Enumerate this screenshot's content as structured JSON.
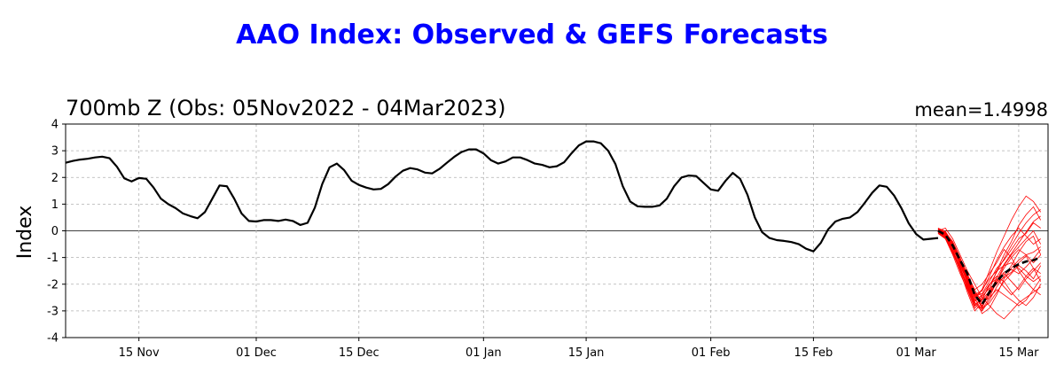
{
  "chart_data": {
    "type": "line",
    "title": "AAO Index: Observed & GEFS Forecasts",
    "subtitle_left": "700mb Z (Obs: 05Nov2022 - 04Mar2023)",
    "subtitle_right": "mean=1.4998",
    "ylabel": "Index",
    "xlabel": "",
    "xlim": [
      "2022-11-05",
      "2023-03-19"
    ],
    "ylim": [
      -4,
      4
    ],
    "yticks": [
      -4,
      -3,
      -2,
      -1,
      0,
      1,
      2,
      3,
      4
    ],
    "xticks": [
      {
        "date": "2022-11-15",
        "label": "15 Nov"
      },
      {
        "date": "2022-12-01",
        "label": "01 Dec"
      },
      {
        "date": "2022-12-15",
        "label": "15 Dec"
      },
      {
        "date": "2023-01-01",
        "label": "01 Jan"
      },
      {
        "date": "2023-01-15",
        "label": "15 Jan"
      },
      {
        "date": "2023-02-01",
        "label": "01 Feb"
      },
      {
        "date": "2023-02-15",
        "label": "15 Feb"
      },
      {
        "date": "2023-03-01",
        "label": "01 Mar"
      },
      {
        "date": "2023-03-15",
        "label": "15 Mar"
      }
    ],
    "grid": true,
    "colors": {
      "observed": "#000000",
      "members": "#ff0000",
      "ensemble_mean": "#000000",
      "title": "#0000ff"
    },
    "series": [
      {
        "style": "solid-black",
        "start": "2022-11-05",
        "values": [
          2.55,
          2.62,
          2.67,
          2.7,
          2.75,
          2.78,
          2.72,
          2.4,
          1.97,
          1.85,
          1.98,
          1.95,
          1.62,
          1.2,
          1.0,
          0.85,
          0.65,
          0.55,
          0.47,
          0.7,
          1.2,
          1.7,
          1.67,
          1.2,
          0.65,
          0.37,
          0.35,
          0.4,
          0.4,
          0.37,
          0.42,
          0.37,
          0.22,
          0.3,
          0.87,
          1.75,
          2.38,
          2.52,
          2.27,
          1.88,
          1.72,
          1.62,
          1.55,
          1.57,
          1.75,
          2.03,
          2.25,
          2.35,
          2.3,
          2.18,
          2.15,
          2.32,
          2.55,
          2.77,
          2.95,
          3.05,
          3.05,
          2.9,
          2.65,
          2.52,
          2.6,
          2.75,
          2.75,
          2.65,
          2.52,
          2.47,
          2.38,
          2.42,
          2.57,
          2.9,
          3.2,
          3.35,
          3.35,
          3.28,
          3.0,
          2.5,
          1.67,
          1.1,
          0.92,
          0.9,
          0.9,
          0.95,
          1.2,
          1.67,
          2.0,
          2.07,
          2.05,
          1.8,
          1.55,
          1.5,
          1.87,
          2.17,
          1.95,
          1.35,
          0.5,
          -0.05,
          -0.27,
          -0.35,
          -0.38,
          -0.42,
          -0.5,
          -0.67,
          -0.77,
          -0.45,
          0.05,
          0.35,
          0.45,
          0.5,
          0.7,
          1.05,
          1.42,
          1.7,
          1.65,
          1.32,
          0.85,
          0.28,
          -0.12,
          -0.33,
          -0.3,
          -0.27
        ]
      },
      {
        "style": "dashed-black",
        "start": "2023-03-04",
        "values": [
          0.0,
          -0.15,
          -0.55,
          -1.1,
          -1.6,
          -2.4,
          -2.75,
          -2.3,
          -1.9,
          -1.6,
          -1.4,
          -1.25,
          -1.15,
          -1.1,
          -1.0
        ]
      },
      {
        "style": "thin-red",
        "start": "2023-03-04",
        "members": [
          [
            0.1,
            -0.05,
            -0.4,
            -1.0,
            -1.8,
            -2.5,
            -3.1,
            -2.9,
            -2.4,
            -1.8,
            -1.4,
            -1.1,
            -0.9,
            -0.8,
            -0.6
          ],
          [
            0.05,
            -0.2,
            -0.7,
            -1.4,
            -2.0,
            -2.7,
            -2.9,
            -2.2,
            -1.5,
            -0.9,
            -0.4,
            0.2,
            0.6,
            0.9,
            0.4
          ],
          [
            -0.1,
            -0.3,
            -0.9,
            -1.6,
            -2.2,
            -2.9,
            -2.6,
            -2.0,
            -1.7,
            -1.9,
            -2.3,
            -2.6,
            -2.8,
            -2.5,
            -2.0
          ],
          [
            0.0,
            0.1,
            -0.3,
            -0.9,
            -1.5,
            -2.0,
            -2.5,
            -2.8,
            -3.1,
            -3.3,
            -3.0,
            -2.7,
            -2.5,
            -2.3,
            -2.1
          ],
          [
            0.08,
            -0.1,
            -0.6,
            -1.2,
            -1.9,
            -2.6,
            -2.2,
            -1.5,
            -0.8,
            -0.2,
            0.4,
            0.9,
            1.3,
            1.1,
            0.7
          ],
          [
            -0.05,
            -0.25,
            -0.8,
            -1.5,
            -2.3,
            -3.0,
            -2.7,
            -2.3,
            -2.0,
            -1.6,
            -1.9,
            -2.2,
            -1.8,
            -1.5,
            -1.2
          ],
          [
            0.02,
            -0.15,
            -0.5,
            -1.1,
            -1.7,
            -2.3,
            -2.8,
            -2.4,
            -1.9,
            -1.3,
            -0.9,
            -0.6,
            -0.3,
            0.0,
            -0.5
          ],
          [
            0.1,
            -0.02,
            -0.45,
            -1.05,
            -1.65,
            -2.2,
            -2.0,
            -1.6,
            -1.2,
            -0.7,
            -1.0,
            -1.5,
            -1.9,
            -2.2,
            -2.4
          ],
          [
            -0.02,
            -0.22,
            -0.75,
            -1.35,
            -2.05,
            -2.75,
            -3.0,
            -2.6,
            -2.1,
            -1.7,
            -1.3,
            -0.8,
            -0.4,
            -0.2,
            -0.9
          ],
          [
            0.05,
            -0.1,
            -0.55,
            -1.2,
            -1.85,
            -2.45,
            -2.35,
            -1.9,
            -1.4,
            -1.1,
            -0.7,
            -0.3,
            -0.1,
            0.3,
            0.1
          ],
          [
            0.0,
            -0.18,
            -0.65,
            -1.25,
            -1.95,
            -2.65,
            -2.4,
            -2.0,
            -1.8,
            -2.1,
            -2.4,
            -2.1,
            -1.7,
            -1.4,
            -1.6
          ],
          [
            0.07,
            -0.12,
            -0.5,
            -1.15,
            -1.75,
            -2.35,
            -2.9,
            -2.7,
            -2.3,
            -1.9,
            -1.6,
            -1.3,
            -1.5,
            -1.8,
            -1.3
          ],
          [
            -0.08,
            -0.28,
            -0.85,
            -1.45,
            -2.15,
            -2.8,
            -2.55,
            -2.05,
            -1.55,
            -1.05,
            -0.55,
            -0.1,
            0.3,
            0.6,
            0.8
          ],
          [
            0.03,
            -0.14,
            -0.6,
            -1.3,
            -1.9,
            -2.5,
            -2.2,
            -1.8,
            -1.5,
            -1.3,
            -1.2,
            -1.4,
            -1.7,
            -1.9,
            -1.7
          ],
          [
            0.09,
            -0.06,
            -0.42,
            -1.02,
            -1.62,
            -2.22,
            -2.7,
            -2.5,
            -2.2,
            -2.4,
            -2.6,
            -2.8,
            -2.6,
            -2.2,
            -1.8
          ],
          [
            -0.04,
            -0.24,
            -0.78,
            -1.38,
            -2.08,
            -2.68,
            -2.95,
            -2.5,
            -1.9,
            -1.4,
            -1.0,
            -0.7,
            -0.9,
            -1.2,
            -0.9
          ],
          [
            0.01,
            -0.16,
            -0.58,
            -1.18,
            -1.78,
            -2.38,
            -2.25,
            -1.7,
            -1.1,
            -0.6,
            -0.2,
            0.1,
            -0.2,
            -0.5,
            -0.3
          ],
          [
            0.06,
            -0.08,
            -0.48,
            -1.08,
            -1.72,
            -2.32,
            -2.6,
            -2.25,
            -1.85,
            -1.55,
            -1.45,
            -1.6,
            -1.35,
            -1.05,
            -0.7
          ],
          [
            -0.06,
            -0.26,
            -0.82,
            -1.42,
            -2.12,
            -2.82,
            -2.45,
            -2.15,
            -1.95,
            -1.75,
            -1.55,
            -1.2,
            -0.95,
            -1.4,
            -1.9
          ],
          [
            0.04,
            -0.12,
            -0.52,
            -1.12,
            -1.82,
            -2.42,
            -2.85,
            -2.35,
            -1.75,
            -1.25,
            -0.85,
            -0.45,
            -0.05,
            0.35,
            0.55
          ]
        ]
      }
    ]
  }
}
